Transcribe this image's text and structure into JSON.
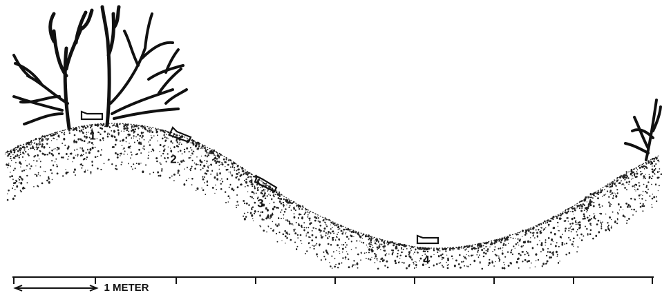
{
  "diagram": {
    "stations": [
      {
        "label": "1"
      },
      {
        "label": "2"
      },
      {
        "label": "3"
      },
      {
        "label": "4"
      }
    ],
    "scale_label": "1 METER"
  }
}
